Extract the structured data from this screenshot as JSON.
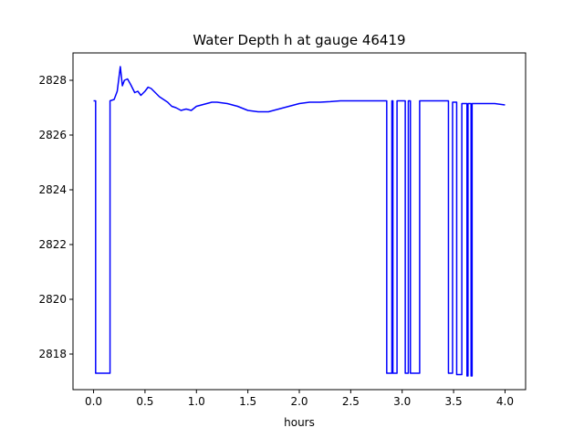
{
  "chart_data": {
    "type": "line",
    "title": "Water Depth h at gauge 46419",
    "xlabel": "hours",
    "ylabel": "",
    "xlim": [
      -0.2,
      4.2
    ],
    "ylim": [
      2816.7,
      2829.0
    ],
    "xticks": [
      0.0,
      0.5,
      1.0,
      1.5,
      2.0,
      2.5,
      3.0,
      3.5,
      4.0
    ],
    "xtick_labels": [
      "0.0",
      "0.5",
      "1.0",
      "1.5",
      "2.0",
      "2.5",
      "3.0",
      "3.5",
      "4.0"
    ],
    "yticks": [
      2818,
      2820,
      2822,
      2824,
      2826,
      2828
    ],
    "ytick_labels": [
      "2818",
      "2820",
      "2822",
      "2824",
      "2826",
      "2828"
    ],
    "grid": false,
    "series": [
      {
        "color": "#0000ff",
        "x": [
          0.0,
          0.02,
          0.02,
          0.16,
          0.16,
          0.2,
          0.23,
          0.26,
          0.28,
          0.3,
          0.33,
          0.36,
          0.4,
          0.43,
          0.46,
          0.5,
          0.53,
          0.56,
          0.6,
          0.64,
          0.68,
          0.72,
          0.76,
          0.8,
          0.85,
          0.9,
          0.95,
          1.0,
          1.05,
          1.1,
          1.15,
          1.2,
          1.3,
          1.4,
          1.5,
          1.6,
          1.7,
          1.8,
          1.9,
          2.0,
          2.1,
          2.2,
          2.3,
          2.4,
          2.5,
          2.6,
          2.7,
          2.8,
          2.85,
          2.85,
          2.9,
          2.9,
          2.91,
          2.91,
          2.95,
          2.95,
          3.03,
          3.03,
          3.06,
          3.06,
          3.08,
          3.08,
          3.17,
          3.17,
          3.45,
          3.45,
          3.46,
          3.46,
          3.49,
          3.49,
          3.53,
          3.53,
          3.58,
          3.58,
          3.63,
          3.63,
          3.64,
          3.64,
          3.67,
          3.67,
          3.68,
          3.68,
          3.8,
          3.9,
          4.0
        ],
        "y": [
          2827.25,
          2827.25,
          2817.3,
          2817.3,
          2827.25,
          2827.3,
          2827.6,
          2828.5,
          2827.8,
          2828.0,
          2828.05,
          2827.85,
          2827.55,
          2827.6,
          2827.45,
          2827.6,
          2827.75,
          2827.7,
          2827.55,
          2827.4,
          2827.3,
          2827.2,
          2827.05,
          2827.0,
          2826.9,
          2826.95,
          2826.9,
          2827.05,
          2827.1,
          2827.15,
          2827.2,
          2827.2,
          2827.15,
          2827.05,
          2826.9,
          2826.85,
          2826.85,
          2826.95,
          2827.05,
          2827.15,
          2827.2,
          2827.2,
          2827.22,
          2827.25,
          2827.25,
          2827.25,
          2827.25,
          2827.25,
          2827.25,
          2817.3,
          2817.3,
          2827.25,
          2827.25,
          2817.3,
          2817.3,
          2827.25,
          2827.25,
          2817.3,
          2817.3,
          2827.25,
          2827.25,
          2817.3,
          2817.3,
          2827.25,
          2827.25,
          2817.3,
          2817.3,
          2817.3,
          2817.3,
          2827.2,
          2827.2,
          2817.25,
          2817.25,
          2827.15,
          2827.15,
          2817.2,
          2817.2,
          2827.15,
          2827.15,
          2817.2,
          2817.2,
          2827.15,
          2827.15,
          2827.15,
          2827.1
        ]
      }
    ]
  }
}
